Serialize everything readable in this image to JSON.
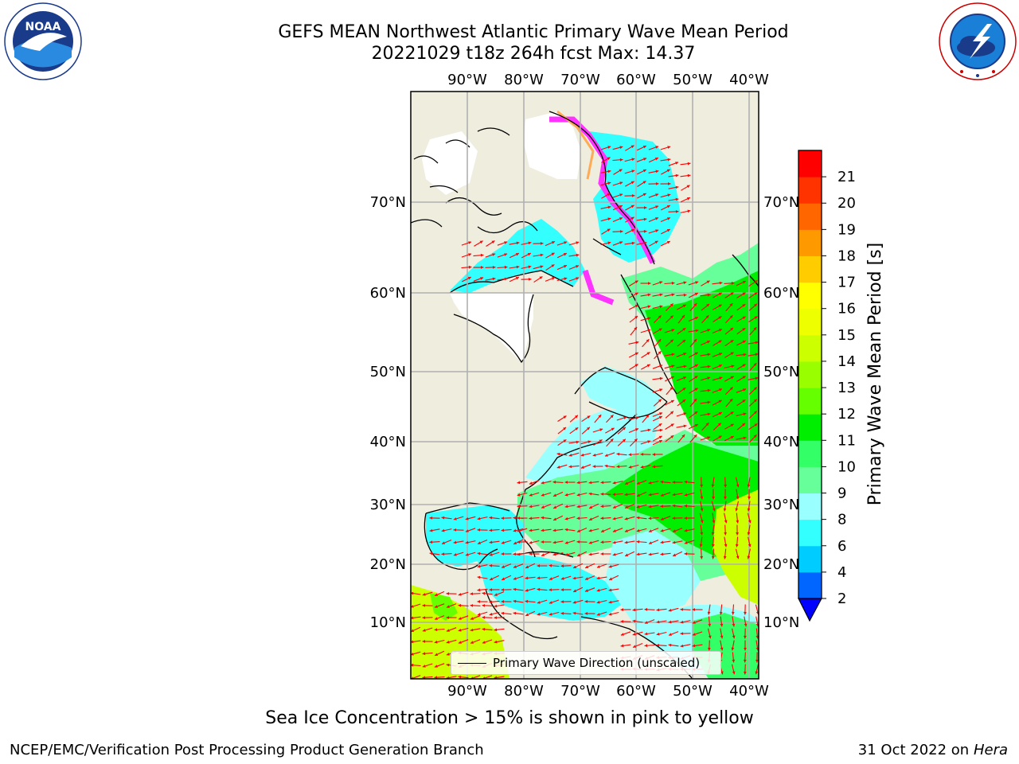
{
  "header": {
    "title_line1": "GEFS MEAN Northwest Atlantic Primary Wave Mean Period",
    "title_line2": "20221029 t18z 264h fcst   Max: 14.37"
  },
  "logos": {
    "noaa_text": "NOAA",
    "noaa_ring_text": "NATIONAL OCEANIC AND ATMOSPHERIC ADMINISTRATION · U.S. DEPARTMENT OF COMMERCE",
    "nws_ring_text": "NATIONAL WEATHER SERVICE"
  },
  "map": {
    "lon_labels": [
      "90°W",
      "80°W",
      "70°W",
      "60°W",
      "50°W",
      "40°W"
    ],
    "lat_labels": [
      "70°N",
      "60°N",
      "50°N",
      "40°N",
      "30°N",
      "20°N",
      "10°N"
    ],
    "legend_label": "Primary Wave Direction (unscaled)",
    "colors": {
      "land": "#efedde",
      "grid": "#b0b0b0",
      "arrow": "#ff0000",
      "ice_pink": "#ff33ff"
    }
  },
  "colorbar": {
    "label": "Primary Wave Mean Period [s]",
    "ticks": [
      "2",
      "4",
      "6",
      "8",
      "9",
      "10",
      "11",
      "12",
      "13",
      "14",
      "15",
      "16",
      "17",
      "18",
      "19",
      "20",
      "21"
    ],
    "colors": [
      "#0066ff",
      "#00ccff",
      "#33ffff",
      "#99ffff",
      "#66ff99",
      "#33ff66",
      "#00ee00",
      "#66ff00",
      "#99ff00",
      "#ccff00",
      "#eeff00",
      "#ffff00",
      "#ffcc00",
      "#ff9900",
      "#ff6600",
      "#ff3300",
      "#ff0000"
    ],
    "extend_color": "#0000ff"
  },
  "footer": {
    "sea_ice_note": "Sea Ice Concentration > 15% is shown in pink to yellow",
    "credit_left": "NCEP/EMC/Verification Post Processing Product Generation Branch",
    "credit_date": "31 Oct 2022 on ",
    "credit_machine": "Hera"
  }
}
